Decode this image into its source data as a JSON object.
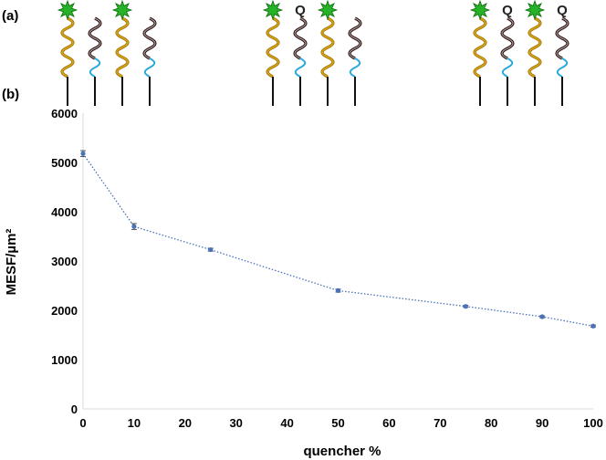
{
  "panels": {
    "a": "(a)",
    "b": "(b)"
  },
  "quencher_label": "Q",
  "colors": {
    "fluor_strand": "#d4a017",
    "quencher_strand": "#2b1515",
    "spacer": "#29a9e0",
    "fluorophore": "#27b327",
    "line": "#4a72b8"
  },
  "schematic": {
    "groups": [
      {
        "strands": [
          "fluor",
          "plain",
          "fluor",
          "plain"
        ]
      },
      {
        "strands": [
          "fluor",
          "quencher",
          "fluor",
          "plain"
        ]
      },
      {
        "strands": [
          "fluor",
          "quencher",
          "fluor",
          "quencher"
        ]
      }
    ]
  },
  "chart_data": {
    "type": "line",
    "x": [
      0,
      10,
      25,
      50,
      75,
      90,
      100
    ],
    "series": [
      {
        "values": [
          5180,
          3700,
          3230,
          2400,
          2080,
          1870,
          1680
        ],
        "error": [
          60,
          60,
          30,
          30,
          20,
          20,
          20
        ]
      }
    ],
    "xlabel": "quencher %",
    "ylabel": "MESF/µm²",
    "xlim": [
      0,
      100
    ],
    "ylim": [
      0,
      6000
    ],
    "xticks": [
      "0",
      "10",
      "20",
      "30",
      "40",
      "50",
      "60",
      "70",
      "80",
      "90",
      "100"
    ],
    "yticks": [
      "0",
      "1000",
      "2000",
      "3000",
      "4000",
      "5000",
      "6000"
    ],
    "grid": false,
    "line_style": "dotted",
    "marker": "circle"
  }
}
